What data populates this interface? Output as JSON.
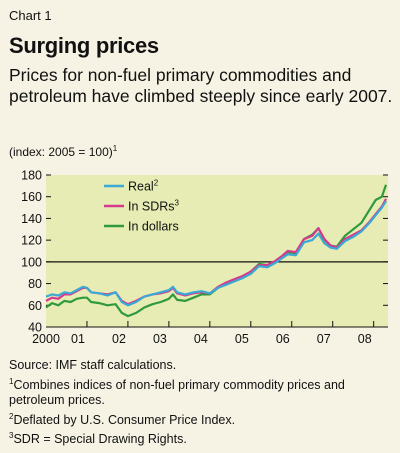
{
  "chart_label": "Chart 1",
  "title": "Surging prices",
  "subtitle": "Prices for non-fuel primary commodities and petroleum have climbed steeply since early 2007.",
  "units": "(index: 2005 = 100)",
  "units_note_ref": "1",
  "notes": {
    "source": "Source: IMF staff calculations.",
    "note1_ref": "1",
    "note1": "Combines indices of non-fuel primary commodity prices and petroleum prices.",
    "note2_ref": "2",
    "note2": "Deflated by U.S. Consumer Price Index.",
    "note3_ref": "3",
    "note3": "SDR = Special Drawing Rights."
  },
  "colors": {
    "plot_background": "#e6ecb4",
    "figure_background": "#f6f3e4",
    "reference_line": "#111111"
  },
  "chart_data": {
    "type": "line",
    "x_tick_labels": [
      "2000",
      "01",
      "02",
      "03",
      "04",
      "05",
      "06",
      "07",
      "08"
    ],
    "x_range": [
      2000.0,
      2008.35
    ],
    "ylim": [
      40,
      180
    ],
    "y_ticks": [
      40,
      60,
      80,
      100,
      120,
      140,
      160,
      180
    ],
    "reference_line_y": 100,
    "grid": false,
    "legend_position": "top-left",
    "series": [
      {
        "name": "Real",
        "name_ref": "2",
        "color": "#3aa9d6",
        "points": [
          [
            2000.0,
            68
          ],
          [
            2000.15,
            70
          ],
          [
            2000.3,
            69
          ],
          [
            2000.45,
            72
          ],
          [
            2000.6,
            71
          ],
          [
            2000.75,
            74
          ],
          [
            2000.9,
            77
          ],
          [
            2001.0,
            76
          ],
          [
            2001.1,
            72
          ],
          [
            2001.3,
            71
          ],
          [
            2001.5,
            69
          ],
          [
            2001.7,
            72
          ],
          [
            2001.85,
            63
          ],
          [
            2002.0,
            60
          ],
          [
            2002.2,
            63
          ],
          [
            2002.4,
            68
          ],
          [
            2002.6,
            70
          ],
          [
            2002.8,
            72
          ],
          [
            2003.0,
            74
          ],
          [
            2003.1,
            77
          ],
          [
            2003.2,
            72
          ],
          [
            2003.4,
            70
          ],
          [
            2003.6,
            72
          ],
          [
            2003.8,
            73
          ],
          [
            2004.0,
            71
          ],
          [
            2004.2,
            76
          ],
          [
            2004.4,
            79
          ],
          [
            2004.6,
            82
          ],
          [
            2004.8,
            85
          ],
          [
            2005.0,
            89
          ],
          [
            2005.2,
            96
          ],
          [
            2005.4,
            95
          ],
          [
            2005.6,
            99
          ],
          [
            2005.75,
            103
          ],
          [
            2005.9,
            107
          ],
          [
            2006.1,
            106
          ],
          [
            2006.3,
            118
          ],
          [
            2006.5,
            120
          ],
          [
            2006.65,
            126
          ],
          [
            2006.8,
            117
          ],
          [
            2006.95,
            113
          ],
          [
            2007.1,
            112
          ],
          [
            2007.3,
            119
          ],
          [
            2007.5,
            123
          ],
          [
            2007.7,
            128
          ],
          [
            2007.9,
            136
          ],
          [
            2008.05,
            143
          ],
          [
            2008.2,
            150
          ],
          [
            2008.3,
            156
          ]
        ]
      },
      {
        "name": "In SDRs",
        "name_ref": "3",
        "color": "#d63a8e",
        "points": [
          [
            2000.0,
            64
          ],
          [
            2000.15,
            67
          ],
          [
            2000.3,
            66
          ],
          [
            2000.45,
            70
          ],
          [
            2000.6,
            70
          ],
          [
            2000.75,
            73
          ],
          [
            2000.9,
            76
          ],
          [
            2001.0,
            76
          ],
          [
            2001.1,
            72
          ],
          [
            2001.3,
            71
          ],
          [
            2001.5,
            70
          ],
          [
            2001.7,
            72
          ],
          [
            2001.85,
            64
          ],
          [
            2002.0,
            61
          ],
          [
            2002.2,
            64
          ],
          [
            2002.4,
            68
          ],
          [
            2002.6,
            70
          ],
          [
            2002.8,
            71
          ],
          [
            2003.0,
            73
          ],
          [
            2003.1,
            76
          ],
          [
            2003.2,
            71
          ],
          [
            2003.4,
            69
          ],
          [
            2003.6,
            71
          ],
          [
            2003.8,
            72
          ],
          [
            2004.0,
            71
          ],
          [
            2004.2,
            77
          ],
          [
            2004.4,
            81
          ],
          [
            2004.6,
            84
          ],
          [
            2004.8,
            87
          ],
          [
            2005.0,
            91
          ],
          [
            2005.2,
            97
          ],
          [
            2005.4,
            97
          ],
          [
            2005.6,
            101
          ],
          [
            2005.75,
            105
          ],
          [
            2005.9,
            110
          ],
          [
            2006.1,
            109
          ],
          [
            2006.3,
            121
          ],
          [
            2006.5,
            124
          ],
          [
            2006.65,
            131
          ],
          [
            2006.8,
            121
          ],
          [
            2006.95,
            115
          ],
          [
            2007.1,
            113
          ],
          [
            2007.3,
            121
          ],
          [
            2007.5,
            125
          ],
          [
            2007.7,
            129
          ],
          [
            2007.9,
            137
          ],
          [
            2008.05,
            144
          ],
          [
            2008.2,
            151
          ],
          [
            2008.3,
            158
          ]
        ]
      },
      {
        "name": "In dollars",
        "name_ref": "",
        "color": "#2e9a3c",
        "points": [
          [
            2000.0,
            58
          ],
          [
            2000.15,
            62
          ],
          [
            2000.3,
            60
          ],
          [
            2000.45,
            64
          ],
          [
            2000.6,
            63
          ],
          [
            2000.75,
            66
          ],
          [
            2000.9,
            67
          ],
          [
            2001.0,
            67
          ],
          [
            2001.1,
            63
          ],
          [
            2001.3,
            62
          ],
          [
            2001.5,
            60
          ],
          [
            2001.7,
            61
          ],
          [
            2001.85,
            53
          ],
          [
            2002.0,
            50
          ],
          [
            2002.2,
            53
          ],
          [
            2002.4,
            58
          ],
          [
            2002.6,
            61
          ],
          [
            2002.8,
            63
          ],
          [
            2003.0,
            66
          ],
          [
            2003.1,
            70
          ],
          [
            2003.2,
            65
          ],
          [
            2003.4,
            64
          ],
          [
            2003.6,
            67
          ],
          [
            2003.8,
            70
          ],
          [
            2004.0,
            70
          ],
          [
            2004.2,
            76
          ],
          [
            2004.4,
            80
          ],
          [
            2004.6,
            83
          ],
          [
            2004.8,
            86
          ],
          [
            2005.0,
            91
          ],
          [
            2005.2,
            98
          ],
          [
            2005.4,
            97
          ],
          [
            2005.6,
            100
          ],
          [
            2005.75,
            104
          ],
          [
            2005.9,
            109
          ],
          [
            2006.1,
            108
          ],
          [
            2006.3,
            121
          ],
          [
            2006.5,
            125
          ],
          [
            2006.65,
            131
          ],
          [
            2006.8,
            120
          ],
          [
            2006.95,
            115
          ],
          [
            2007.1,
            114
          ],
          [
            2007.3,
            124
          ],
          [
            2007.5,
            130
          ],
          [
            2007.7,
            136
          ],
          [
            2007.9,
            148
          ],
          [
            2008.05,
            157
          ],
          [
            2008.2,
            160
          ],
          [
            2008.3,
            171
          ]
        ]
      }
    ]
  }
}
